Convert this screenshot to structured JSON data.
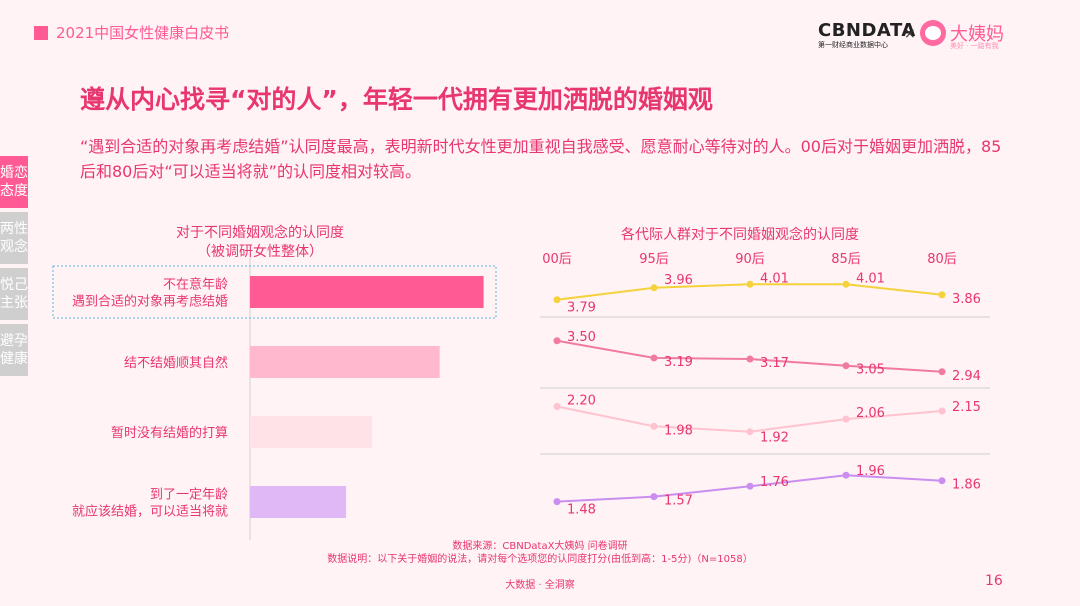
{
  "header": {
    "title": "2021中国女性健康白皮书"
  },
  "brand": {
    "cbn_name": "CBNDATA",
    "cbn_sub": "第一财经商业数据中心",
    "separator": "×",
    "partner_name": "大姨妈",
    "partner_sub": "美好 · 一路有我"
  },
  "title": "遵从内心找寻“对的人”，年轻一代拥有更加洒脱的婚姻观",
  "description": "“遇到合适的对象再考虑结婚”认同度最高，表明新时代女性更加重视自我感受、愿意耐心等待对的人。00后对于婚姻更加洒脱，85后和80后对“可以适当将就”的认同度相对较高。",
  "tabs": [
    {
      "label": "婚恋态度",
      "active": true
    },
    {
      "label": "两性观念",
      "active": false
    },
    {
      "label": "悦己主张",
      "active": false
    },
    {
      "label": "避孕健康",
      "active": false
    }
  ],
  "chart_data": [
    {
      "type": "bar",
      "title": "对于不同婚姻观念的认同度",
      "subtitle": "（被调研女性整体）",
      "categories": [
        [
          "不在意年龄",
          "遇到合适的对象再考虑结婚"
        ],
        [
          "结不结婚顺其自然"
        ],
        [
          "暂时没有结婚的打算"
        ],
        [
          "到了一定年龄",
          "就应该结婚，可以适当将就"
        ]
      ],
      "values": [
        3.94,
        3.2,
        2.06,
        1.62
      ],
      "colors": [
        "#ff5a93",
        "#ffb8cd",
        "#ffe2e8",
        "#e0b8f5"
      ],
      "xlim": [
        0,
        5
      ]
    },
    {
      "type": "line",
      "title": "各代际人群对于不同婚姻观念的认同度",
      "x": [
        "00后",
        "95后",
        "90后",
        "85后",
        "80后"
      ],
      "series": [
        {
          "values": [
            3.79,
            3.96,
            4.01,
            4.01,
            3.86
          ],
          "color": "#f5d23a"
        },
        {
          "values": [
            3.5,
            3.19,
            3.17,
            3.05,
            2.94
          ],
          "color": "#f07aa0"
        },
        {
          "values": [
            2.2,
            1.98,
            1.92,
            2.06,
            2.15
          ],
          "color": "#ffc2cf"
        },
        {
          "values": [
            1.48,
            1.57,
            1.76,
            1.96,
            1.86
          ],
          "color": "#c98ef0"
        }
      ],
      "value_labels": [
        [
          "3.79",
          "3.96",
          "4.01",
          "4.01",
          "3.86"
        ],
        [
          "3.50",
          "3.19",
          "3.17",
          "3.05",
          "2.94"
        ],
        [
          "2.20",
          "1.98",
          "1.92",
          "2.06",
          "2.15"
        ],
        [
          "1.48",
          "1.57",
          "1.76",
          "1.96",
          "1.86"
        ]
      ]
    }
  ],
  "source": {
    "line1": "数据来源：CBNDataX大姨妈 问卷调研",
    "line2": "数据说明：以下关于婚姻的说法，请对每个选项您的认同度打分(由低到高：1-5分)（N=1058）"
  },
  "footer": "大数据 · 全洞察",
  "page_number": "16"
}
